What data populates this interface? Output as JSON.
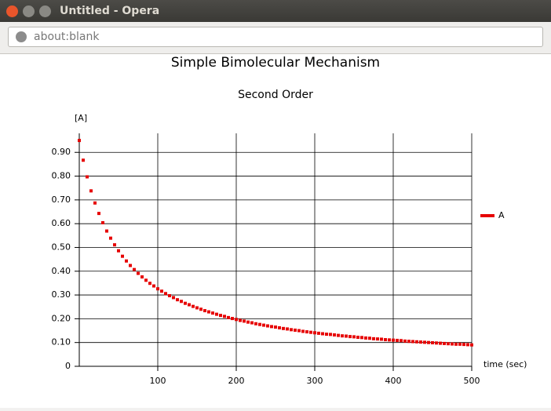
{
  "window": {
    "title": "Untitled - Opera",
    "url": "about:blank"
  },
  "chart_data": {
    "type": "scatter",
    "title": "Simple Bimolecular Mechanism",
    "subtitle": "Second Order",
    "y_label": "[A]",
    "x_label": "time (sec)",
    "xlim": [
      0,
      500
    ],
    "ylim": [
      0,
      0.98
    ],
    "xticks": [
      100,
      200,
      300,
      400,
      500
    ],
    "yticks": [
      0,
      {
        "value": 0.1,
        "label": "0.10"
      },
      {
        "value": 0.2,
        "label": "0.20"
      },
      {
        "value": 0.3,
        "label": "0.30"
      },
      {
        "value": 0.4,
        "label": "0.40"
      },
      {
        "value": 0.5,
        "label": "0.50"
      },
      {
        "value": 0.6,
        "label": "0.60"
      },
      {
        "value": 0.7,
        "label": "0.70"
      },
      {
        "value": 0.8,
        "label": "0.80"
      },
      {
        "value": 0.9,
        "label": "0.90"
      }
    ],
    "grid": true,
    "legend": "right",
    "series": [
      {
        "name": "A",
        "color": "#e60000",
        "x": [
          0,
          5,
          10,
          15,
          20,
          25,
          30,
          35,
          40,
          45,
          50,
          55,
          60,
          65,
          70,
          75,
          80,
          85,
          90,
          95,
          100,
          105,
          110,
          115,
          120,
          125,
          130,
          135,
          140,
          145,
          150,
          155,
          160,
          165,
          170,
          175,
          180,
          185,
          190,
          195,
          200,
          205,
          210,
          215,
          220,
          225,
          230,
          235,
          240,
          245,
          250,
          255,
          260,
          265,
          270,
          275,
          280,
          285,
          290,
          295,
          300,
          305,
          310,
          315,
          320,
          325,
          330,
          335,
          340,
          345,
          350,
          355,
          360,
          365,
          370,
          375,
          380,
          385,
          390,
          395,
          400,
          405,
          410,
          415,
          420,
          425,
          430,
          435,
          440,
          445,
          450,
          455,
          460,
          465,
          470,
          475,
          480,
          485,
          490,
          495,
          500
        ],
        "values": [
          0.95,
          0.867,
          0.797,
          0.738,
          0.687,
          0.643,
          0.604,
          0.569,
          0.539,
          0.511,
          0.486,
          0.463,
          0.443,
          0.424,
          0.407,
          0.391,
          0.376,
          0.362,
          0.349,
          0.338,
          0.326,
          0.316,
          0.306,
          0.297,
          0.289,
          0.28,
          0.273,
          0.265,
          0.259,
          0.252,
          0.246,
          0.24,
          0.234,
          0.229,
          0.224,
          0.219,
          0.214,
          0.21,
          0.205,
          0.201,
          0.197,
          0.193,
          0.19,
          0.186,
          0.183,
          0.179,
          0.176,
          0.173,
          0.17,
          0.167,
          0.165,
          0.162,
          0.159,
          0.157,
          0.154,
          0.152,
          0.15,
          0.147,
          0.145,
          0.143,
          0.141,
          0.139,
          0.137,
          0.135,
          0.134,
          0.132,
          0.13,
          0.128,
          0.127,
          0.125,
          0.124,
          0.122,
          0.121,
          0.119,
          0.118,
          0.116,
          0.115,
          0.114,
          0.112,
          0.111,
          0.11,
          0.109,
          0.108,
          0.106,
          0.105,
          0.104,
          0.103,
          0.102,
          0.101,
          0.1,
          0.099,
          0.098,
          0.097,
          0.096,
          0.095,
          0.094,
          0.093,
          0.093,
          0.092,
          0.091,
          0.09
        ]
      }
    ]
  }
}
